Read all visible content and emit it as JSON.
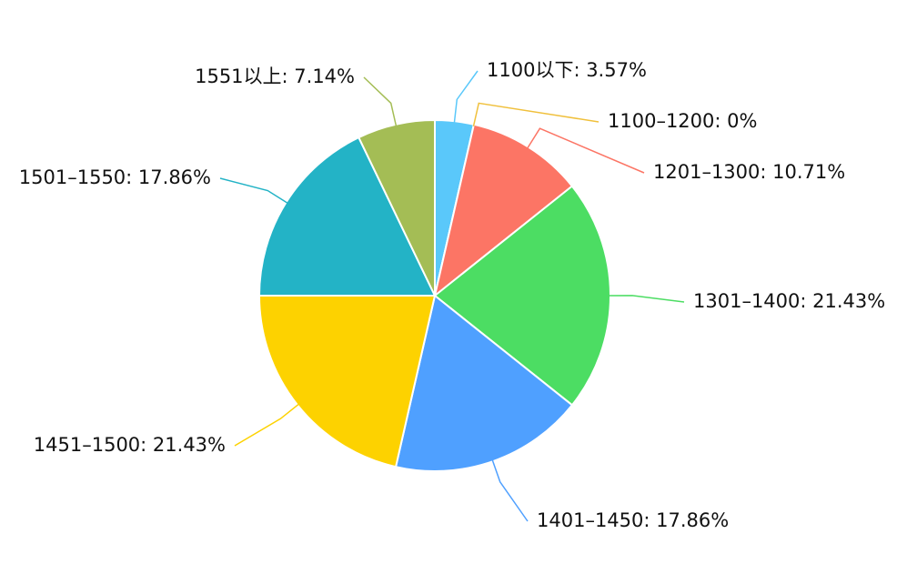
{
  "chart_data": {
    "type": "pie",
    "labels": [
      "1100以下: 3.57%",
      "1100–1200: 0%",
      "1201–1300: 10.71%",
      "1301–1400: 21.43%",
      "1401–1450: 17.86%",
      "1451–1500: 21.43%",
      "1501–1550: 17.86%",
      "1551以上: 7.14%"
    ],
    "values": [
      3.57,
      0,
      10.71,
      21.43,
      17.86,
      21.43,
      17.86,
      7.14
    ],
    "colors": [
      "#5ac8fa",
      "#f0c03c",
      "#fc7565",
      "#4cdd63",
      "#4fa0ff",
      "#fdd200",
      "#23b3c6",
      "#a4bd55"
    ]
  }
}
